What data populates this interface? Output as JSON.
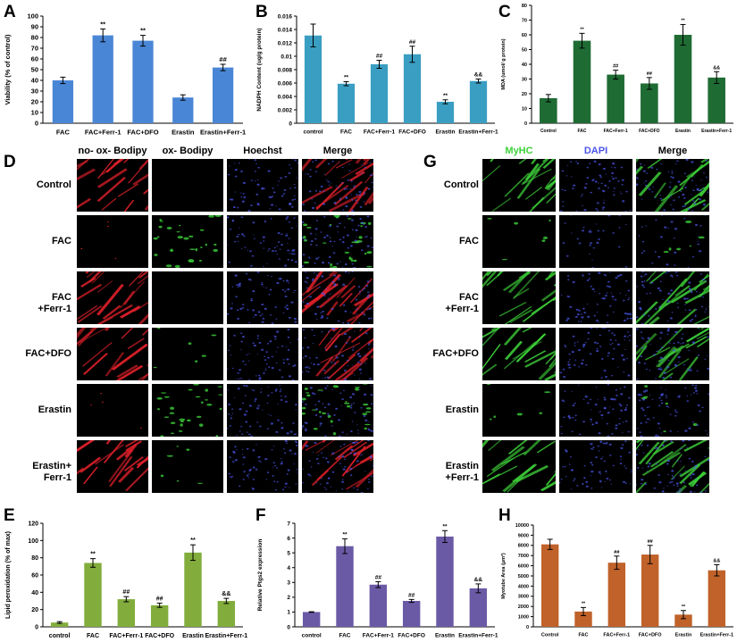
{
  "panel_labels": [
    "A",
    "B",
    "C",
    "D",
    "E",
    "F",
    "G",
    "H"
  ],
  "colors": {
    "A": "#4a86d6",
    "B": "#3a9ec2",
    "C": "#1f6b34",
    "E": "#82ad3d",
    "F": "#6a5aa6",
    "H": "#c0622a",
    "bodipy_red": "#e0202a",
    "bodipy_green": "#3ccf3a",
    "nuclei_blue": "#4a55e8",
    "myhc_green": "#3ed23a"
  },
  "chart_data": [
    {
      "panel": "A",
      "type": "bar",
      "ylabel": "Viability (% of control)",
      "categories": [
        "FAC",
        "FAC+Ferr-1",
        "FAC+DFO",
        "Erastin",
        "Erastin+Ferr-1"
      ],
      "values": [
        40,
        82,
        77,
        24,
        52
      ],
      "errors": [
        3,
        6,
        5,
        2.5,
        3
      ],
      "annotations": [
        "",
        "**",
        "**",
        "",
        "##"
      ],
      "ylim": [
        0,
        100
      ],
      "yticks": [
        0,
        10,
        20,
        30,
        40,
        50,
        60,
        70,
        80,
        90,
        100
      ]
    },
    {
      "panel": "B",
      "type": "bar",
      "ylabel": "NADPH Content (ug/g protein)",
      "categories": [
        "control",
        "FAC",
        "FAC+Ferr-1",
        "FAC+DFO",
        "Erastin",
        "Erastin+Ferr-1"
      ],
      "values": [
        0.0131,
        0.0059,
        0.0088,
        0.0103,
        0.0032,
        0.0063
      ],
      "errors": [
        0.0017,
        0.0003,
        0.0006,
        0.0012,
        0.0003,
        0.0003
      ],
      "annotations": [
        "",
        "**",
        "##",
        "##",
        "**",
        "&&"
      ],
      "ylim": [
        0,
        0.016
      ],
      "yticks": [
        0,
        0.002,
        0.004,
        0.006,
        0.008,
        0.01,
        0.012,
        0.014,
        0.016
      ],
      "yticklabels": [
        "0",
        "0.002",
        "0.004",
        "0.006",
        "0.008",
        "0.01",
        "0.012",
        "0.014",
        "0.016"
      ]
    },
    {
      "panel": "C",
      "type": "bar",
      "ylabel": "MDA (umol/ g protein)",
      "categories": [
        "Control",
        "FAC",
        "FAC+Ferr-1",
        "FAC+DFO",
        "Erastin",
        "Erastin+Ferr-1"
      ],
      "values": [
        17,
        56,
        33,
        27,
        60,
        31
      ],
      "errors": [
        2.5,
        5,
        3,
        4,
        7,
        4
      ],
      "annotations": [
        "",
        "**",
        "##",
        "##",
        "**",
        "&&"
      ],
      "ylim": [
        0,
        80
      ],
      "yticks": [
        0,
        10,
        20,
        30,
        40,
        50,
        60,
        70,
        80
      ]
    },
    {
      "panel": "E",
      "type": "bar",
      "ylabel": "Lipid peroxidation (% of max)",
      "categories": [
        "control",
        "FAC",
        "FAC+Ferr-1",
        "FAC+DFO",
        "Erastin",
        "Erastin+Ferr-1"
      ],
      "values": [
        5,
        74,
        32,
        25,
        86,
        30
      ],
      "errors": [
        1,
        5,
        3,
        2.5,
        9,
        3
      ],
      "annotations": [
        "",
        "**",
        "##",
        "##",
        "**",
        "&&"
      ],
      "ylim": [
        0,
        120
      ],
      "yticks": [
        0,
        20,
        40,
        60,
        80,
        100,
        120
      ]
    },
    {
      "panel": "F",
      "type": "bar",
      "ylabel": "Relative Ptgs2 expression",
      "categories": [
        "control",
        "FAC",
        "FAC+Ferr-1",
        "FAC+DFO",
        "Erastin",
        "Erastin+Ferr-1"
      ],
      "values": [
        1,
        5.45,
        2.85,
        1.75,
        6.1,
        2.6
      ],
      "errors": [
        0.02,
        0.5,
        0.2,
        0.1,
        0.4,
        0.3
      ],
      "annotations": [
        "",
        "**",
        "##",
        "##",
        "**",
        "&&"
      ],
      "ylim": [
        0,
        7
      ],
      "yticks": [
        0,
        1,
        2,
        3,
        4,
        5,
        6,
        7
      ]
    },
    {
      "panel": "H",
      "type": "bar",
      "ylabel": "Myotube Area (μm²)",
      "categories": [
        "Control",
        "FAC",
        "FAC+Ferr-1",
        "FAC+DFO",
        "Erastin",
        "Erastin+Ferr-1"
      ],
      "values": [
        8100,
        1500,
        6300,
        7100,
        1200,
        5550
      ],
      "errors": [
        500,
        400,
        650,
        900,
        400,
        550
      ],
      "annotations": [
        "",
        "**",
        "##",
        "##",
        "**",
        "&&"
      ],
      "ylim": [
        0,
        10000
      ],
      "yticks": [
        0,
        1000,
        2000,
        3000,
        4000,
        5000,
        6000,
        7000,
        8000,
        9000,
        10000
      ]
    }
  ],
  "micrograph_D": {
    "columns": [
      "no- ox- Bodipy",
      "ox- Bodipy",
      "Hoechst",
      "Merge"
    ],
    "rows": [
      "Control",
      "FAC",
      "FAC\n+Ferr-1",
      "FAC+DFO",
      "Erastin",
      "Erastin+\nFerr-1"
    ]
  },
  "micrograph_G": {
    "columns": [
      "MyHC",
      "DAPI",
      "Merge"
    ],
    "rows": [
      "Control",
      "FAC",
      "FAC\n+Ferr-1",
      "FAC+DFO",
      "Erastin",
      "Erastin\n+Ferr-1"
    ]
  }
}
